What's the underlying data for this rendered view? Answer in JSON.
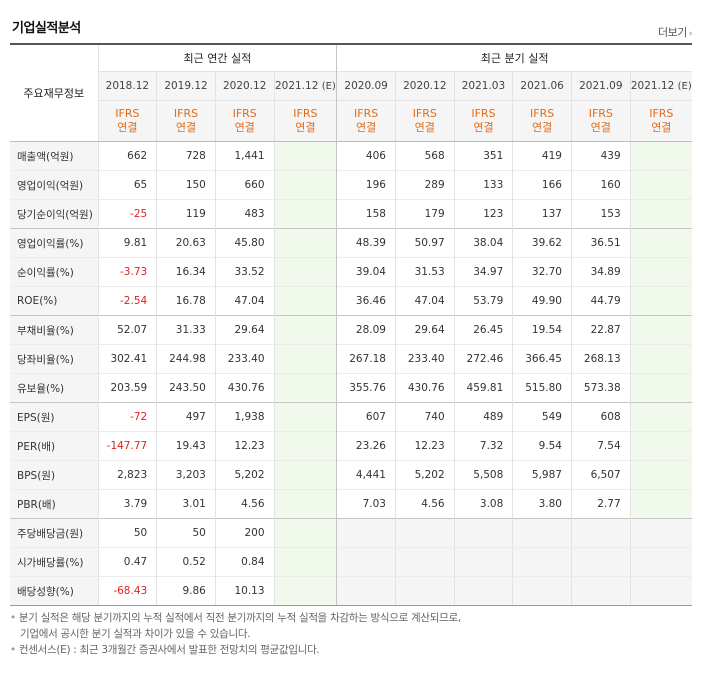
{
  "title": "기업실적분석",
  "more_link": "더보기",
  "header": {
    "row_label": "주요재무정보",
    "annual_group": "최근 연간 실적",
    "quarter_group": "최근 분기 실적",
    "annual_periods": [
      "2018.12",
      "2019.12",
      "2020.12",
      "2021.12"
    ],
    "quarter_periods": [
      "2020.09",
      "2020.12",
      "2021.03",
      "2021.06",
      "2021.09",
      "2021.12"
    ],
    "estimate_mark": "(E)",
    "ifrs_line1": "IFRS",
    "ifrs_line2": "연결"
  },
  "rows": [
    {
      "label": "매출액(억원)",
      "annual": [
        "662",
        "728",
        "1,441",
        ""
      ],
      "quarter": [
        "406",
        "568",
        "351",
        "419",
        "439",
        ""
      ]
    },
    {
      "label": "영업이익(억원)",
      "annual": [
        "65",
        "150",
        "660",
        ""
      ],
      "quarter": [
        "196",
        "289",
        "133",
        "166",
        "160",
        ""
      ]
    },
    {
      "label": "당기순이익(억원)",
      "annual": [
        "-25",
        "119",
        "483",
        ""
      ],
      "quarter": [
        "158",
        "179",
        "123",
        "137",
        "153",
        ""
      ]
    },
    {
      "label": "영업이익률(%)",
      "annual": [
        "9.81",
        "20.63",
        "45.80",
        ""
      ],
      "quarter": [
        "48.39",
        "50.97",
        "38.04",
        "39.62",
        "36.51",
        ""
      ]
    },
    {
      "label": "순이익률(%)",
      "annual": [
        "-3.73",
        "16.34",
        "33.52",
        ""
      ],
      "quarter": [
        "39.04",
        "31.53",
        "34.97",
        "32.70",
        "34.89",
        ""
      ]
    },
    {
      "label": "ROE(%)",
      "annual": [
        "-2.54",
        "16.78",
        "47.04",
        ""
      ],
      "quarter": [
        "36.46",
        "47.04",
        "53.79",
        "49.90",
        "44.79",
        ""
      ]
    },
    {
      "label": "부채비율(%)",
      "annual": [
        "52.07",
        "31.33",
        "29.64",
        ""
      ],
      "quarter": [
        "28.09",
        "29.64",
        "26.45",
        "19.54",
        "22.87",
        ""
      ]
    },
    {
      "label": "당좌비율(%)",
      "annual": [
        "302.41",
        "244.98",
        "233.40",
        ""
      ],
      "quarter": [
        "267.18",
        "233.40",
        "272.46",
        "366.45",
        "268.13",
        ""
      ]
    },
    {
      "label": "유보율(%)",
      "annual": [
        "203.59",
        "243.50",
        "430.76",
        ""
      ],
      "quarter": [
        "355.76",
        "430.76",
        "459.81",
        "515.80",
        "573.38",
        ""
      ]
    },
    {
      "label": "EPS(원)",
      "annual": [
        "-72",
        "497",
        "1,938",
        ""
      ],
      "quarter": [
        "607",
        "740",
        "489",
        "549",
        "608",
        ""
      ]
    },
    {
      "label": "PER(배)",
      "annual": [
        "-147.77",
        "19.43",
        "12.23",
        ""
      ],
      "quarter": [
        "23.26",
        "12.23",
        "7.32",
        "9.54",
        "7.54",
        ""
      ]
    },
    {
      "label": "BPS(원)",
      "annual": [
        "2,823",
        "3,203",
        "5,202",
        ""
      ],
      "quarter": [
        "4,441",
        "5,202",
        "5,508",
        "5,987",
        "6,507",
        ""
      ]
    },
    {
      "label": "PBR(배)",
      "annual": [
        "3.79",
        "3.01",
        "4.56",
        ""
      ],
      "quarter": [
        "7.03",
        "4.56",
        "3.08",
        "3.80",
        "2.77",
        ""
      ]
    },
    {
      "label": "주당배당금(원)",
      "annual": [
        "50",
        "50",
        "200",
        ""
      ],
      "quarter": [
        "",
        "",
        "",
        "",
        "",
        ""
      ]
    },
    {
      "label": "시가배당률(%)",
      "annual": [
        "0.47",
        "0.52",
        "0.84",
        ""
      ],
      "quarter": [
        "",
        "",
        "",
        "",
        "",
        ""
      ]
    },
    {
      "label": "배당성향(%)",
      "annual": [
        "-68.43",
        "9.86",
        "10.13",
        ""
      ],
      "quarter": [
        "",
        "",
        "",
        "",
        "",
        ""
      ]
    }
  ],
  "notes": {
    "line1": "분기 실적은 해당 분기까지의 누적 실적에서 직전 분기까지의 누적 실적을 차감하는 방식으로 계산되므로,",
    "line2": "기업에서 공시한 분기 실적과 차이가 있을 수 있습니다.",
    "line3": "컨센서스(E) : 최근 3개월간 증권사에서 발표한 전망치의 평균값입니다."
  },
  "colors": {
    "negative": "#e02020",
    "ifrs": "#e06c1a",
    "estimate_bg": "#f1f8ec"
  }
}
